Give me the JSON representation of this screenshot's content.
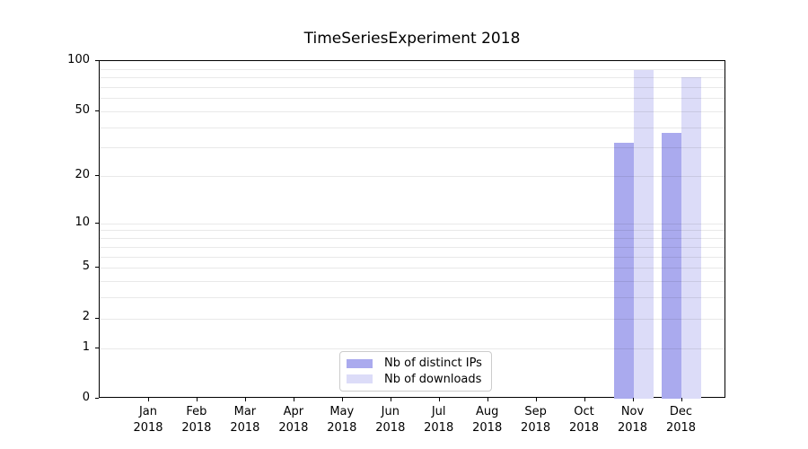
{
  "chart_data": {
    "type": "bar",
    "title": "TimeSeriesExperiment 2018",
    "categories": [
      "Jan",
      "Feb",
      "Mar",
      "Apr",
      "May",
      "Jun",
      "Jul",
      "Aug",
      "Sep",
      "Oct",
      "Nov",
      "Dec"
    ],
    "year": "2018",
    "series": [
      {
        "name": "Nb of distinct IPs",
        "color": "#aaaaee",
        "values": [
          0,
          0,
          0,
          0,
          0,
          0,
          0,
          0,
          0,
          0,
          32,
          37
        ]
      },
      {
        "name": "Nb of downloads",
        "color": "#dcdcf8",
        "values": [
          0,
          0,
          0,
          0,
          0,
          0,
          0,
          0,
          0,
          0,
          88,
          80
        ]
      }
    ],
    "xlabel": "",
    "ylabel": "",
    "ylim": [
      0,
      100
    ],
    "y_scale": "log(1+x)",
    "y_ticks": [
      0,
      1,
      2,
      5,
      10,
      20,
      50,
      100
    ],
    "y_gridlines": [
      1,
      2,
      3,
      4,
      5,
      6,
      7,
      8,
      9,
      10,
      20,
      30,
      40,
      50,
      60,
      70,
      80,
      90
    ],
    "grid": true,
    "legend_position": "lower center"
  },
  "colors": {
    "background": "#ffffff",
    "bar_distinct_ips": "#aaaaee",
    "bar_downloads": "#dcdcf8",
    "gridline": "#e9e9e9",
    "axis": "#000000",
    "legend_border": "#cccccc",
    "text": "#000000"
  }
}
